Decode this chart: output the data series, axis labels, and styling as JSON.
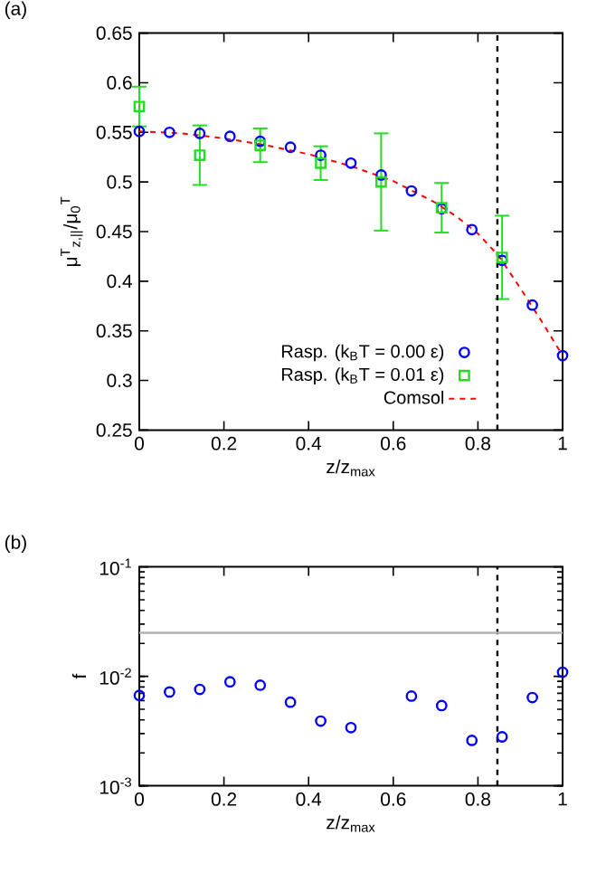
{
  "chart_data": [
    {
      "type": "scatter",
      "title": "(a)",
      "xlabel": "z/z$_{max}$",
      "ylabel": "μ$^{T}$$_{z,||}$/μ$_{0}$$^{T}$",
      "xlim": [
        0,
        1
      ],
      "ylim": [
        0.25,
        0.65
      ],
      "xticks": [
        0,
        0.2,
        0.4,
        0.6,
        0.8,
        1
      ],
      "yticks": [
        0.25,
        0.3,
        0.35,
        0.4,
        0.45,
        0.5,
        0.55,
        0.6,
        0.65
      ],
      "grid": false,
      "legend": "bottom right",
      "series": [
        {
          "name": "Rasp. (k$_{B}$T = 0.00 ε)",
          "marker": "circle",
          "color": "#0000ff",
          "x": [
            0,
            0.0714,
            0.1429,
            0.2143,
            0.2857,
            0.3571,
            0.4286,
            0.5,
            0.5714,
            0.6429,
            0.7143,
            0.7857,
            0.8571,
            0.9286,
            1
          ],
          "values": [
            0.551,
            0.55,
            0.549,
            0.546,
            0.541,
            0.535,
            0.527,
            0.519,
            0.507,
            0.491,
            0.473,
            0.452,
            0.421,
            0.376,
            0.325
          ]
        },
        {
          "name": "Rasp. (k$_{B}$T = 0.01 ε)",
          "marker": "square",
          "color": "#22dd22",
          "x": [
            0,
            0.1429,
            0.2857,
            0.4286,
            0.5714,
            0.7143,
            0.8571
          ],
          "values": [
            0.576,
            0.527,
            0.537,
            0.519,
            0.5,
            0.474,
            0.424
          ],
          "errors": [
            0.02,
            0.03,
            0.017,
            0.017,
            0.049,
            0.025,
            0.042
          ]
        },
        {
          "name": "Comsol",
          "type": "line",
          "marker": "none",
          "line_style": "dashed",
          "color": "#ff0000",
          "x": [
            0,
            0.1,
            0.2,
            0.3,
            0.4,
            0.5,
            0.6,
            0.7,
            0.75,
            0.8,
            0.85,
            0.9,
            0.95,
            1
          ],
          "values": [
            0.551,
            0.549,
            0.544,
            0.537,
            0.528,
            0.516,
            0.501,
            0.479,
            0.465,
            0.448,
            0.425,
            0.393,
            0.36,
            0.325
          ]
        }
      ],
      "ref_lines": [
        {
          "axis": "x",
          "value": 0.846,
          "color": "#000000",
          "line_style": "dashed"
        }
      ]
    },
    {
      "type": "scatter",
      "title": "(b)",
      "xlabel": "z/z$_{max}$",
      "ylabel": "f",
      "log": "y",
      "xlim": [
        0,
        1
      ],
      "ylim": [
        0.001,
        0.1
      ],
      "xticks": [
        0,
        0.2,
        0.4,
        0.6,
        0.8,
        1
      ],
      "yticks": [
        {
          "value": 0.001,
          "label": "10$^{-3}$"
        },
        {
          "value": 0.01,
          "label": "10$^{-2}$"
        },
        {
          "value": 0.1,
          "label": "10$^{-1}$"
        }
      ],
      "grid": false,
      "series": [
        {
          "marker": "circle",
          "color": "#0000ff",
          "x": [
            0,
            0.0714,
            0.1429,
            0.2143,
            0.2857,
            0.3571,
            0.4286,
            0.5,
            0.6429,
            0.7143,
            0.7857,
            0.8571,
            0.9286,
            1
          ],
          "values": [
            0.0067,
            0.0072,
            0.0076,
            0.0089,
            0.0083,
            0.0058,
            0.0039,
            0.0034,
            0.0066,
            0.0054,
            0.0026,
            0.0028,
            0.0064,
            0.0109
          ]
        }
      ],
      "ref_lines": [
        {
          "axis": "x",
          "value": 0.846,
          "color": "#000000",
          "line_style": "dashed"
        },
        {
          "axis": "y",
          "value": 0.025,
          "color": "#b4b4b4",
          "line_style": "solid"
        }
      ]
    }
  ]
}
